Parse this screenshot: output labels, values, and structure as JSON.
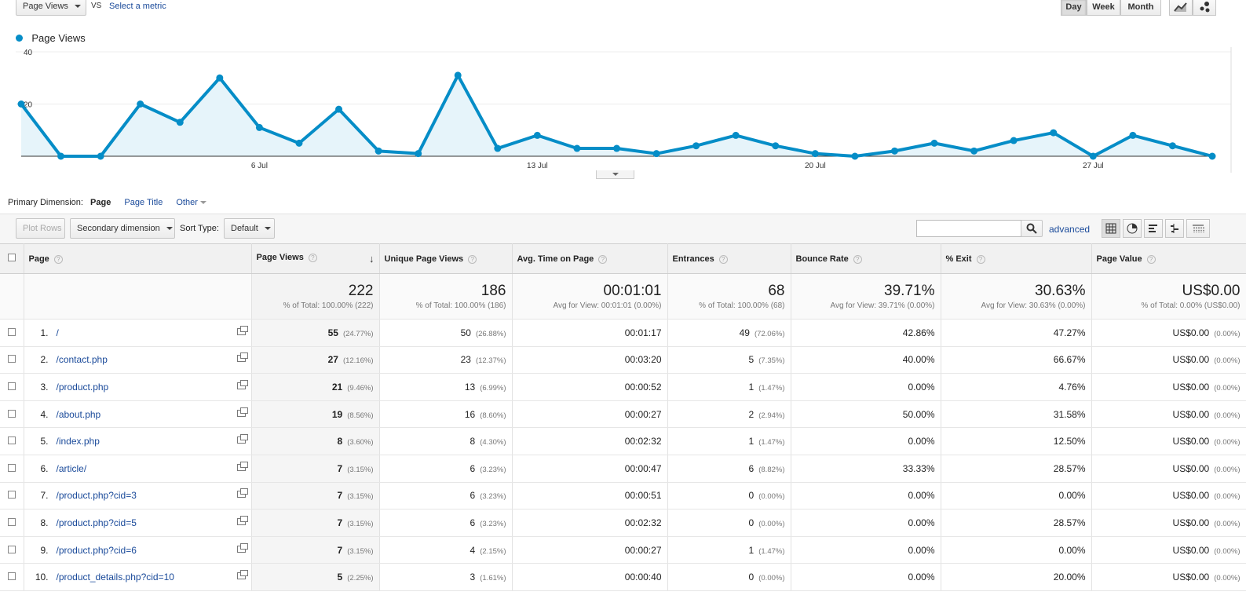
{
  "top_bar": {
    "metric_select": "Page Views",
    "vs_label": "VS",
    "select_metric_link": "Select a metric",
    "period_buttons": [
      "Day",
      "Week",
      "Month"
    ],
    "active_period": "Day"
  },
  "chart_data": {
    "type": "area",
    "legend": [
      "Page Views"
    ],
    "series": [
      {
        "name": "Page Views",
        "color": "#058dc7",
        "values": [
          20,
          0,
          0,
          20,
          13,
          30,
          11,
          5,
          18,
          2,
          1,
          31,
          3,
          8,
          3,
          3,
          1,
          4,
          8,
          4,
          1,
          0,
          2,
          5,
          2,
          6,
          9,
          0,
          8,
          4,
          0
        ]
      }
    ],
    "x_tick_labels": [
      "6 Jul",
      "13 Jul",
      "20 Jul",
      "27 Jul"
    ],
    "y_tick_labels": [
      "40",
      "20"
    ],
    "ylim": [
      0,
      40
    ]
  },
  "dimension_bar": {
    "label": "Primary Dimension:",
    "options": [
      "Page",
      "Page Title",
      "Other"
    ],
    "active": "Page"
  },
  "toolbar": {
    "plot_rows": "Plot Rows",
    "secondary_dimension": "Secondary dimension",
    "sort_type_label": "Sort Type:",
    "sort_type_value": "Default",
    "search_value": "",
    "advanced_link": "advanced"
  },
  "table": {
    "headers": [
      "Page",
      "Page Views",
      "Unique Page Views",
      "Avg. Time on Page",
      "Entrances",
      "Bounce Rate",
      "% Exit",
      "Page Value"
    ],
    "totals": [
      {
        "value": "222",
        "sub": "% of Total: 100.00% (222)"
      },
      {
        "value": "186",
        "sub": "% of Total: 100.00% (186)"
      },
      {
        "value": "00:01:01",
        "sub": "Avg for View: 00:01:01 (0.00%)"
      },
      {
        "value": "68",
        "sub": "% of Total: 100.00% (68)"
      },
      {
        "value": "39.71%",
        "sub": "Avg for View: 39.71% (0.00%)"
      },
      {
        "value": "30.63%",
        "sub": "Avg for View: 30.63% (0.00%)"
      },
      {
        "value": "US$0.00",
        "sub": "% of Total: 0.00% (US$0.00)"
      }
    ],
    "rows": [
      {
        "idx": "1.",
        "page": "/",
        "pv": "55",
        "pv_pct": "(24.77%)",
        "upv": "50",
        "upv_pct": "(26.88%)",
        "time": "00:01:17",
        "ent": "49",
        "ent_pct": "(72.06%)",
        "bounce": "42.86%",
        "exit": "47.27%",
        "value": "US$0.00",
        "value_pct": "(0.00%)"
      },
      {
        "idx": "2.",
        "page": "/contact.php",
        "pv": "27",
        "pv_pct": "(12.16%)",
        "upv": "23",
        "upv_pct": "(12.37%)",
        "time": "00:03:20",
        "ent": "5",
        "ent_pct": "(7.35%)",
        "bounce": "40.00%",
        "exit": "66.67%",
        "value": "US$0.00",
        "value_pct": "(0.00%)"
      },
      {
        "idx": "3.",
        "page": "/product.php",
        "pv": "21",
        "pv_pct": "(9.46%)",
        "upv": "13",
        "upv_pct": "(6.99%)",
        "time": "00:00:52",
        "ent": "1",
        "ent_pct": "(1.47%)",
        "bounce": "0.00%",
        "exit": "4.76%",
        "value": "US$0.00",
        "value_pct": "(0.00%)"
      },
      {
        "idx": "4.",
        "page": "/about.php",
        "pv": "19",
        "pv_pct": "(8.56%)",
        "upv": "16",
        "upv_pct": "(8.60%)",
        "time": "00:00:27",
        "ent": "2",
        "ent_pct": "(2.94%)",
        "bounce": "50.00%",
        "exit": "31.58%",
        "value": "US$0.00",
        "value_pct": "(0.00%)"
      },
      {
        "idx": "5.",
        "page": "/index.php",
        "pv": "8",
        "pv_pct": "(3.60%)",
        "upv": "8",
        "upv_pct": "(4.30%)",
        "time": "00:02:32",
        "ent": "1",
        "ent_pct": "(1.47%)",
        "bounce": "0.00%",
        "exit": "12.50%",
        "value": "US$0.00",
        "value_pct": "(0.00%)"
      },
      {
        "idx": "6.",
        "page": "/article/",
        "pv": "7",
        "pv_pct": "(3.15%)",
        "upv": "6",
        "upv_pct": "(3.23%)",
        "time": "00:00:47",
        "ent": "6",
        "ent_pct": "(8.82%)",
        "bounce": "33.33%",
        "exit": "28.57%",
        "value": "US$0.00",
        "value_pct": "(0.00%)"
      },
      {
        "idx": "7.",
        "page": "/product.php?cid=3",
        "pv": "7",
        "pv_pct": "(3.15%)",
        "upv": "6",
        "upv_pct": "(3.23%)",
        "time": "00:00:51",
        "ent": "0",
        "ent_pct": "(0.00%)",
        "bounce": "0.00%",
        "exit": "0.00%",
        "value": "US$0.00",
        "value_pct": "(0.00%)"
      },
      {
        "idx": "8.",
        "page": "/product.php?cid=5",
        "pv": "7",
        "pv_pct": "(3.15%)",
        "upv": "6",
        "upv_pct": "(3.23%)",
        "time": "00:02:32",
        "ent": "0",
        "ent_pct": "(0.00%)",
        "bounce": "0.00%",
        "exit": "28.57%",
        "value": "US$0.00",
        "value_pct": "(0.00%)"
      },
      {
        "idx": "9.",
        "page": "/product.php?cid=6",
        "pv": "7",
        "pv_pct": "(3.15%)",
        "upv": "4",
        "upv_pct": "(2.15%)",
        "time": "00:00:27",
        "ent": "1",
        "ent_pct": "(1.47%)",
        "bounce": "0.00%",
        "exit": "0.00%",
        "value": "US$0.00",
        "value_pct": "(0.00%)"
      },
      {
        "idx": "10.",
        "page": "/product_details.php?cid=10",
        "pv": "5",
        "pv_pct": "(2.25%)",
        "upv": "3",
        "upv_pct": "(1.61%)",
        "time": "00:00:40",
        "ent": "0",
        "ent_pct": "(0.00%)",
        "bounce": "0.00%",
        "exit": "20.00%",
        "value": "US$0.00",
        "value_pct": "(0.00%)"
      }
    ]
  }
}
